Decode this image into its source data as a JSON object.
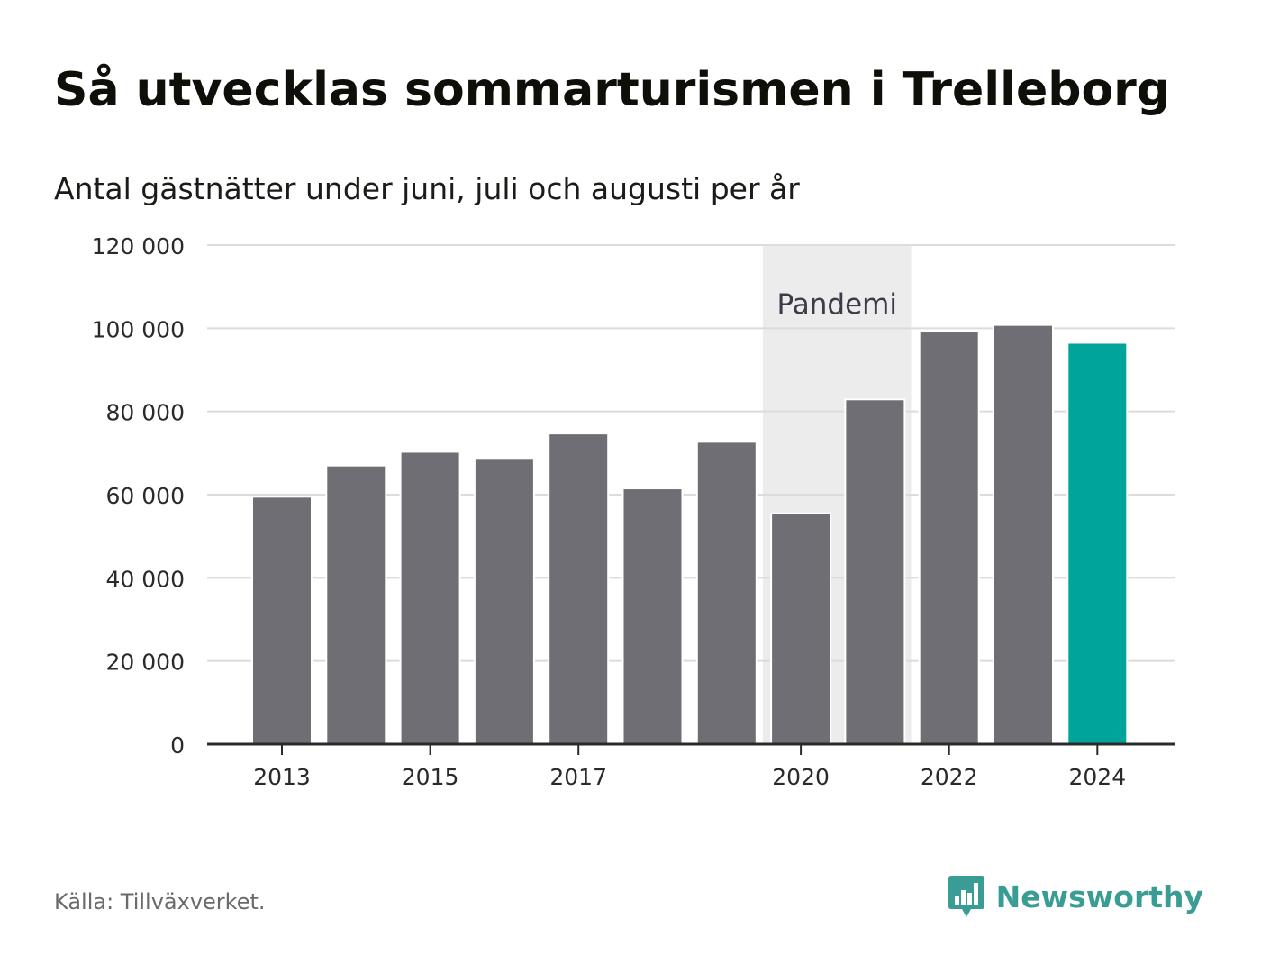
{
  "title": "Så utvecklas sommarturismen i Trelleborg",
  "subtitle": "Antal gästnätter under juni, juli och augusti per år",
  "source": "Källa: Tillväxverket.",
  "brand": "Newsworthy",
  "colors": {
    "bar": "#6f6e74",
    "highlight": "#00a49a",
    "band": "#ececec",
    "grid": "#dcdcdc",
    "axis": "#2a2a2a",
    "brand": "#3a9d95"
  },
  "chart_data": {
    "type": "bar",
    "categories": [
      "2013",
      "2014",
      "2015",
      "2016",
      "2017",
      "2018",
      "2019",
      "2020",
      "2021",
      "2022",
      "2023",
      "2024"
    ],
    "values": [
      59500,
      67000,
      70300,
      68600,
      74700,
      61500,
      72700,
      55500,
      82900,
      99200,
      100800,
      96500
    ],
    "highlight_category": "2024",
    "x_tick_labels": [
      "2013",
      "2015",
      "2017",
      "2020",
      "2022",
      "2024"
    ],
    "y_ticks": [
      0,
      20000,
      40000,
      60000,
      80000,
      100000,
      120000
    ],
    "y_tick_labels": [
      "0",
      "20 000",
      "40 000",
      "60 000",
      "80 000",
      "100 000",
      "120 000"
    ],
    "ylim": [
      0,
      120000
    ],
    "grid": true,
    "annotation": {
      "label": "Pandemi",
      "from": "2020",
      "to": "2021"
    },
    "xlabel": "",
    "ylabel": ""
  }
}
